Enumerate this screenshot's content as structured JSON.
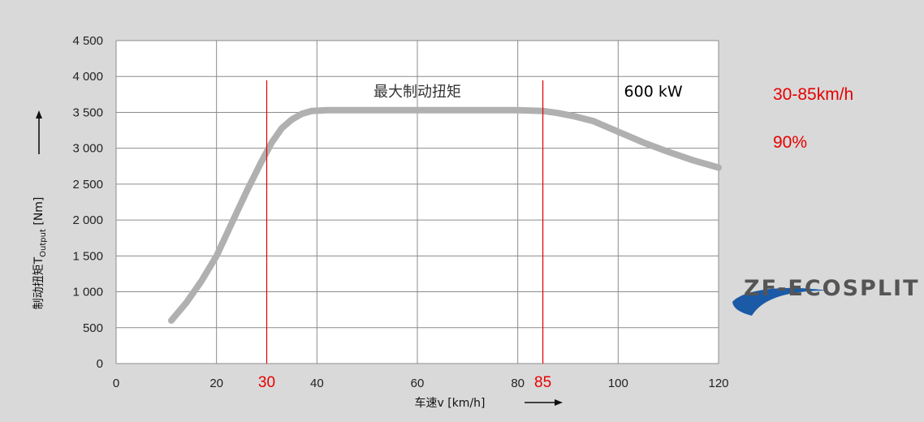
{
  "chart_data": {
    "type": "line",
    "title": "",
    "xlabel": "车速v [km/h]",
    "ylabel": "制动扭矩T",
    "ylabel_sub": "Output",
    "ylabel_unit": " [Nm]",
    "xlim": [
      0,
      120
    ],
    "ylim": [
      0,
      4500
    ],
    "x_ticks": [
      0,
      20,
      40,
      60,
      80,
      100,
      120
    ],
    "y_ticks": [
      0,
      500,
      1000,
      1500,
      2000,
      2500,
      3000,
      3500,
      4000,
      4500
    ],
    "y_tick_labels": [
      "0",
      "500",
      "1 000",
      "1 500",
      "2 000",
      "2 500",
      "3 000",
      "3 500",
      "4 000",
      "4 500"
    ],
    "grid": true,
    "series": [
      {
        "name": "",
        "color": "#b0b0b0",
        "x": [
          11,
          14,
          17,
          20,
          23,
          26,
          29,
          31,
          33,
          35,
          37,
          39,
          42,
          50,
          60,
          70,
          80,
          85,
          88,
          91,
          95,
          100,
          105,
          110,
          115,
          120
        ],
        "y": [
          600,
          850,
          1150,
          1500,
          1950,
          2400,
          2820,
          3080,
          3280,
          3400,
          3480,
          3520,
          3530,
          3530,
          3530,
          3530,
          3530,
          3520,
          3490,
          3450,
          3380,
          3230,
          3080,
          2950,
          2830,
          2730
        ]
      }
    ],
    "markers": [
      {
        "x": 30,
        "label": "30",
        "color": "#e60000"
      },
      {
        "x": 85,
        "label": "85",
        "color": "#e60000"
      }
    ],
    "annotations": [
      {
        "text": "最大制动扭矩",
        "x": 60,
        "y": 3800,
        "color": "#333333"
      },
      {
        "text": "600 kW",
        "x": 107,
        "y": 3800,
        "color": "#000000"
      }
    ]
  },
  "side": {
    "range_text": "30-85km/h",
    "percent_text": "90%",
    "color": "#e60000"
  },
  "logo": {
    "text": "ZF-ECOSPLIT",
    "swoosh_color": "#1b5aa6"
  }
}
